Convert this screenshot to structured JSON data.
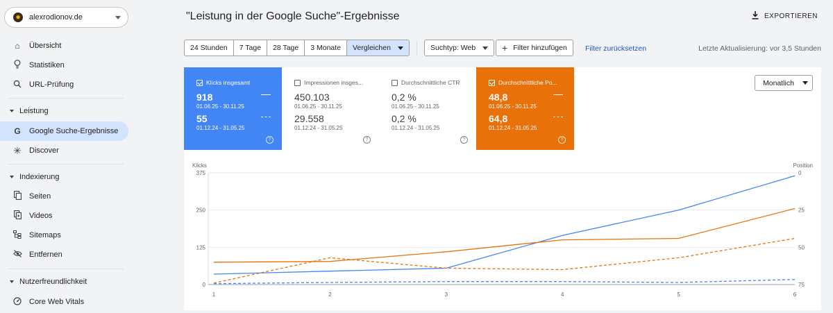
{
  "sidebar": {
    "property": "alexrodionov.de",
    "items": [
      {
        "label": "Übersicht",
        "icon": "home-icon"
      },
      {
        "label": "Statistiken",
        "icon": "lightbulb-icon"
      },
      {
        "label": "URL-Prüfung",
        "icon": "search-icon"
      }
    ],
    "sections": [
      {
        "label": "Leistung",
        "items": [
          {
            "label": "Google Suche-Ergebnisse",
            "icon": "google-g-icon",
            "active": true
          },
          {
            "label": "Discover",
            "icon": "asterisk-icon"
          }
        ]
      },
      {
        "label": "Indexierung",
        "items": [
          {
            "label": "Seiten",
            "icon": "pages-icon"
          },
          {
            "label": "Videos",
            "icon": "video-page-icon"
          },
          {
            "label": "Sitemaps",
            "icon": "sitemap-icon"
          },
          {
            "label": "Entfernen",
            "icon": "eye-off-icon"
          }
        ]
      },
      {
        "label": "Nutzerfreundlichkeit",
        "items": [
          {
            "label": "Core Web Vitals",
            "icon": "gauge-icon"
          }
        ]
      }
    ]
  },
  "header": {
    "title": "\"Leistung in der Google Suche\"-Ergebnisse",
    "export_label": "EXPORTIEREN"
  },
  "filters": {
    "ranges": [
      "24 Stunden",
      "7 Tage",
      "28 Tage",
      "3 Monate"
    ],
    "compare": "Vergleichen",
    "search_type": "Suchtyp: Web",
    "add_filter": "Filter hinzufügen",
    "reset": "Filter zurücksetzen",
    "last_update": "Letzte Aktualisierung: vor 3,5 Stunden"
  },
  "metrics": [
    {
      "label": "Klicks insgesamt",
      "checked": true,
      "value1": "918",
      "date1": "01.06.25 - 30.11.25",
      "value2": "55",
      "date2": "01.12.24 - 31.05.25"
    },
    {
      "label": "Impressionen insges...",
      "checked": false,
      "value1": "450.103",
      "date1": "01.06.25 - 30.11.25",
      "value2": "29.558",
      "date2": "01.12.24 - 31.05.25"
    },
    {
      "label": "Durchschnittliche CTR",
      "checked": false,
      "value1": "0,2 %",
      "date1": "01.06.25 - 30.11.25",
      "value2": "0,2 %",
      "date2": "01.12.24 - 31.05.25"
    },
    {
      "label": "Durchschnittliche Po...",
      "checked": true,
      "value1": "48,8",
      "date1": "01.06.25 - 30.11.25",
      "value2": "64,8",
      "date2": "01.12.24 - 31.05.25"
    }
  ],
  "period_select": "Monatlich",
  "colors": {
    "clicks": "#4285f4",
    "position": "#e8710a",
    "accent": "#1a56c4",
    "selected": "#d3e3fd"
  },
  "chart_data": {
    "type": "line",
    "x": [
      1,
      2,
      3,
      4,
      5,
      6
    ],
    "xlabel": "",
    "left_axis": {
      "label": "Klicks",
      "ticks": [
        0,
        125,
        250,
        375
      ],
      "ylim": [
        0,
        375
      ]
    },
    "right_axis": {
      "label": "Position",
      "ticks": [
        75,
        50,
        25,
        0
      ],
      "ylim": [
        75,
        0
      ],
      "inverted": true
    },
    "series": [
      {
        "metric": "clicks",
        "period": "current",
        "axis": "left",
        "style": "solid",
        "values": [
          35,
          45,
          55,
          165,
          250,
          365
        ]
      },
      {
        "metric": "position",
        "period": "current",
        "axis": "right",
        "style": "solid",
        "values": [
          60,
          59.5,
          53,
          45,
          44,
          24
        ]
      },
      {
        "metric": "clicks",
        "period": "previous",
        "axis": "left",
        "style": "dashed",
        "values": [
          3,
          7,
          10,
          10,
          7,
          17
        ]
      },
      {
        "metric": "position",
        "period": "previous",
        "axis": "right",
        "style": "dashed",
        "values": [
          74,
          57,
          64,
          65,
          57,
          44
        ]
      }
    ],
    "grid": true
  }
}
